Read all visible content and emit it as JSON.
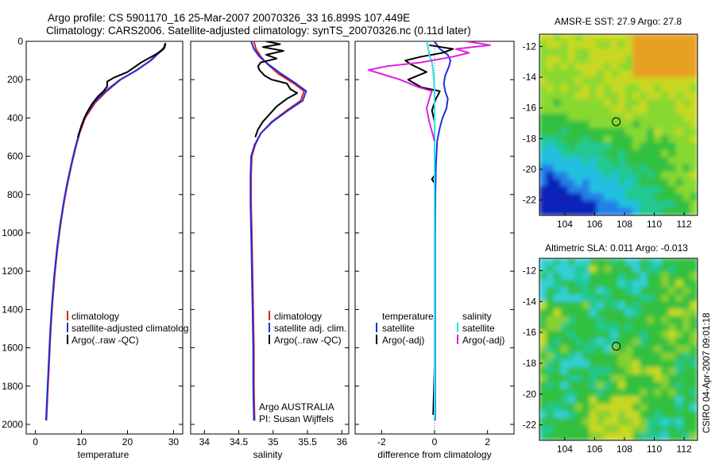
{
  "header": {
    "title_line1": "Argo profile: CS 5901170_16 25-Mar-2007 20070326_33 16.899S 107.449E",
    "title_line2": "Climatology: CARS2006. Satellite-adjusted climatology: synTS_20070326.nc (0.11d later)"
  },
  "side_label": "CSIRO 04-Apr-2007 09:01:18",
  "colors": {
    "climatology": "#e02020",
    "satellite": "#1c2ee0",
    "argo": "#000000",
    "sal_satellite": "#22e6e6",
    "sal_argo": "#e020e0"
  },
  "panels": {
    "temperature": {
      "xlabel": "temperature"
    },
    "salinity": {
      "xlabel": "salinity"
    },
    "difference": {
      "xlabel": "difference from climatology"
    },
    "sst": {
      "title": "AMSR-E SST: 27.9 Argo: 27.8"
    },
    "sla": {
      "title": "Altimetric SLA: 0.011 Argo: -0.013"
    }
  },
  "legends": {
    "temperature": [
      "climatology",
      "satellite-adjusted climatolog",
      "Argo(..raw -QC)"
    ],
    "salinity": [
      "climatology",
      "satellite adj. clim.",
      "Argo(..raw -QC)"
    ],
    "difference_headers": [
      "temperature",
      "salinity"
    ],
    "difference_temp": [
      "satellite",
      "Argo(-adj)"
    ],
    "difference_sal": [
      "satellite",
      "Argo(-adj)"
    ],
    "credit": [
      "Argo AUSTRALIA",
      "PI: Susan Wijffels"
    ]
  },
  "chart_data": [
    {
      "id": "temperature",
      "type": "line",
      "xlabel": "temperature",
      "ylabel": "",
      "xlim": [
        -2,
        32
      ],
      "ylim": [
        0,
        2050
      ],
      "y_inverted": true,
      "x_ticks": [
        0,
        10,
        20,
        30
      ],
      "y_ticks": [
        0,
        200,
        400,
        600,
        800,
        1000,
        1200,
        1400,
        1600,
        1800,
        2000
      ],
      "series": [
        {
          "name": "climatology",
          "color": "#e02020",
          "points": [
            [
              28.2,
              10
            ],
            [
              28,
              30
            ],
            [
              27.2,
              50
            ],
            [
              26.2,
              70
            ],
            [
              25,
              100
            ],
            [
              22,
              150
            ],
            [
              18.5,
              200
            ],
            [
              15.5,
              260
            ],
            [
              13,
              320
            ],
            [
              10.8,
              400
            ],
            [
              9.6,
              480
            ],
            [
              8.7,
              560
            ],
            [
              7.9,
              640
            ],
            [
              7.1,
              730
            ],
            [
              6.3,
              830
            ],
            [
              5.5,
              950
            ],
            [
              4.8,
              1080
            ],
            [
              4.2,
              1220
            ],
            [
              3.7,
              1370
            ],
            [
              3.3,
              1520
            ],
            [
              3,
              1670
            ],
            [
              2.7,
              1820
            ],
            [
              2.4,
              1980
            ]
          ]
        },
        {
          "name": "satellite-adjusted climatology",
          "color": "#1c2ee0",
          "points": [
            [
              28.3,
              10
            ],
            [
              28.1,
              30
            ],
            [
              27.4,
              50
            ],
            [
              26.4,
              70
            ],
            [
              25.1,
              100
            ],
            [
              22.1,
              150
            ],
            [
              18.4,
              200
            ],
            [
              15.2,
              260
            ],
            [
              12.7,
              320
            ],
            [
              10.6,
              400
            ],
            [
              9.5,
              480
            ],
            [
              8.6,
              560
            ],
            [
              7.8,
              640
            ],
            [
              7,
              730
            ],
            [
              6.2,
              830
            ],
            [
              5.4,
              950
            ],
            [
              4.7,
              1080
            ],
            [
              4.1,
              1220
            ],
            [
              3.6,
              1370
            ],
            [
              3.2,
              1520
            ],
            [
              2.9,
              1670
            ],
            [
              2.6,
              1820
            ],
            [
              2.3,
              1980
            ]
          ]
        },
        {
          "name": "Argo(..raw -QC)",
          "color": "#000000",
          "points": [
            [
              28.2,
              10
            ],
            [
              27.9,
              40
            ],
            [
              26,
              70
            ],
            [
              23,
              110
            ],
            [
              20,
              160
            ],
            [
              17,
              190
            ],
            [
              15.6,
              210
            ],
            [
              15.6,
              235
            ],
            [
              14.8,
              260
            ],
            [
              13.5,
              290
            ],
            [
              12.2,
              330
            ],
            [
              11,
              380
            ],
            [
              10,
              440
            ],
            [
              9.2,
              500
            ]
          ]
        }
      ]
    },
    {
      "id": "salinity",
      "type": "line",
      "xlabel": "salinity",
      "ylabel": "",
      "xlim": [
        33.8,
        36.1
      ],
      "ylim": [
        0,
        2050
      ],
      "y_inverted": true,
      "x_ticks": [
        34,
        34.5,
        35,
        35.5,
        36
      ],
      "series": [
        {
          "name": "climatology",
          "color": "#e02020",
          "points": [
            [
              34.72,
              0
            ],
            [
              34.75,
              40
            ],
            [
              34.82,
              80
            ],
            [
              34.92,
              120
            ],
            [
              35.08,
              170
            ],
            [
              35.3,
              220
            ],
            [
              35.45,
              260
            ],
            [
              35.4,
              310
            ],
            [
              35.2,
              360
            ],
            [
              34.98,
              420
            ],
            [
              34.82,
              480
            ],
            [
              34.74,
              540
            ],
            [
              34.69,
              600
            ],
            [
              34.68,
              700
            ],
            [
              34.68,
              850
            ],
            [
              34.69,
              1000
            ],
            [
              34.7,
              1200
            ],
            [
              34.71,
              1400
            ],
            [
              34.72,
              1600
            ],
            [
              34.72,
              1800
            ],
            [
              34.73,
              1980
            ]
          ]
        },
        {
          "name": "satellite adj. clim.",
          "color": "#1c2ee0",
          "points": [
            [
              34.68,
              0
            ],
            [
              34.72,
              40
            ],
            [
              34.8,
              80
            ],
            [
              34.93,
              120
            ],
            [
              35.12,
              170
            ],
            [
              35.33,
              220
            ],
            [
              35.48,
              260
            ],
            [
              35.43,
              310
            ],
            [
              35.22,
              360
            ],
            [
              34.99,
              420
            ],
            [
              34.82,
              480
            ],
            [
              34.73,
              540
            ],
            [
              34.68,
              600
            ],
            [
              34.67,
              700
            ],
            [
              34.67,
              850
            ],
            [
              34.68,
              1000
            ],
            [
              34.69,
              1200
            ],
            [
              34.7,
              1400
            ],
            [
              34.71,
              1600
            ],
            [
              34.71,
              1800
            ],
            [
              34.72,
              1980
            ]
          ]
        },
        {
          "name": "Argo(..raw -QC)",
          "color": "#000000",
          "points": [
            [
              34.9,
              0
            ],
            [
              35.1,
              15
            ],
            [
              34.85,
              30
            ],
            [
              35.15,
              50
            ],
            [
              34.9,
              70
            ],
            [
              35.05,
              90
            ],
            [
              34.82,
              110
            ],
            [
              34.78,
              130
            ],
            [
              34.8,
              150
            ],
            [
              34.88,
              180
            ],
            [
              34.98,
              200
            ],
            [
              35.2,
              220
            ],
            [
              35.25,
              250
            ],
            [
              35.35,
              270
            ],
            [
              35.2,
              300
            ],
            [
              35.05,
              340
            ],
            [
              34.95,
              380
            ],
            [
              34.85,
              420
            ],
            [
              34.78,
              460
            ],
            [
              34.74,
              500
            ]
          ]
        }
      ]
    },
    {
      "id": "difference",
      "type": "line",
      "xlabel": "difference from climatology",
      "ylabel": "",
      "xlim": [
        -3,
        3
      ],
      "ylim": [
        0,
        2050
      ],
      "y_inverted": true,
      "x_ticks": [
        -2,
        0,
        2
      ],
      "series": [
        {
          "name": "temperature satellite",
          "color": "#1c2ee0",
          "points": [
            [
              0,
              0
            ],
            [
              0.1,
              20
            ],
            [
              0.2,
              40
            ],
            [
              0.5,
              70
            ],
            [
              0.6,
              100
            ],
            [
              0.55,
              130
            ],
            [
              0.4,
              180
            ],
            [
              0.35,
              220
            ],
            [
              0.4,
              260
            ],
            [
              0.5,
              300
            ],
            [
              0.45,
              350
            ],
            [
              0.3,
              400
            ],
            [
              0.2,
              450
            ],
            [
              0.1,
              520
            ],
            [
              0.05,
              650
            ],
            [
              0.03,
              800
            ],
            [
              0.02,
              1000
            ],
            [
              0.02,
              1300
            ],
            [
              0.02,
              1600
            ],
            [
              0.02,
              1900
            ],
            [
              0.02,
              1980
            ]
          ]
        },
        {
          "name": "temperature Argo(-adj)",
          "color": "#000000",
          "points": [
            [
              -0.2,
              20
            ],
            [
              0.7,
              40
            ],
            [
              0.3,
              60
            ],
            [
              -0.5,
              80
            ],
            [
              -1.1,
              100
            ],
            [
              -0.9,
              120
            ],
            [
              -0.3,
              160
            ],
            [
              -1,
              200
            ],
            [
              -0.5,
              240
            ],
            [
              0.2,
              260
            ],
            [
              0.05,
              300
            ],
            [
              -0.1,
              360
            ],
            [
              0,
              420
            ],
            [
              0,
              700
            ],
            [
              -0.1,
              720
            ],
            [
              0,
              740
            ],
            [
              0,
              1400
            ],
            [
              0,
              1700
            ],
            [
              -0.05,
              1950
            ]
          ]
        },
        {
          "name": "salinity satellite",
          "color": "#22e6e6",
          "points": [
            [
              -0.3,
              0
            ],
            [
              -0.25,
              30
            ],
            [
              -0.2,
              70
            ],
            [
              -0.1,
              110
            ],
            [
              -0.05,
              160
            ],
            [
              0,
              250
            ],
            [
              0,
              400
            ],
            [
              0,
              600
            ],
            [
              0,
              1000
            ],
            [
              0,
              1400
            ],
            [
              0,
              1800
            ],
            [
              0,
              1980
            ]
          ]
        },
        {
          "name": "salinity Argo(-adj)",
          "color": "#e020e0",
          "points": [
            [
              1.2,
              0
            ],
            [
              2.1,
              20
            ],
            [
              0.8,
              40
            ],
            [
              1.3,
              60
            ],
            [
              0.7,
              80
            ],
            [
              -0.5,
              110
            ],
            [
              -1.8,
              130
            ],
            [
              -2.5,
              150
            ],
            [
              -2,
              170
            ],
            [
              -1.3,
              200
            ],
            [
              -0.6,
              240
            ],
            [
              -0.1,
              260
            ],
            [
              -0.2,
              300
            ],
            [
              -0.3,
              350
            ],
            [
              -0.2,
              420
            ],
            [
              -0.1,
              470
            ],
            [
              0,
              520
            ]
          ]
        }
      ]
    },
    {
      "id": "sst_map",
      "type": "heatmap",
      "title": "AMSR-E SST: 27.9 Argo: 27.8",
      "xlim": [
        102.3,
        112.9
      ],
      "ylim": [
        -23,
        -11.2
      ],
      "x_ticks": [
        104,
        106,
        108,
        110,
        112
      ],
      "y_ticks": [
        -12,
        -14,
        -16,
        -18,
        -20,
        -22
      ],
      "marker": {
        "lon": 107.449,
        "lat": -16.899
      },
      "field": "warm (yellow/orange) in north-east, green centre, cooler (cyan/blue) bands in south-west"
    },
    {
      "id": "sla_map",
      "type": "heatmap",
      "title": "Altimetric SLA: 0.011 Argo: -0.013",
      "xlim": [
        102.3,
        112.9
      ],
      "ylim": [
        -23,
        -11.2
      ],
      "x_ticks": [
        104,
        106,
        108,
        110,
        112
      ],
      "y_ticks": [
        -12,
        -14,
        -16,
        -18,
        -20,
        -22
      ],
      "marker": {
        "lon": 107.449,
        "lat": -16.899
      },
      "field": "mostly green with yellow/olive patches, a cyan feature in the north-west"
    }
  ]
}
